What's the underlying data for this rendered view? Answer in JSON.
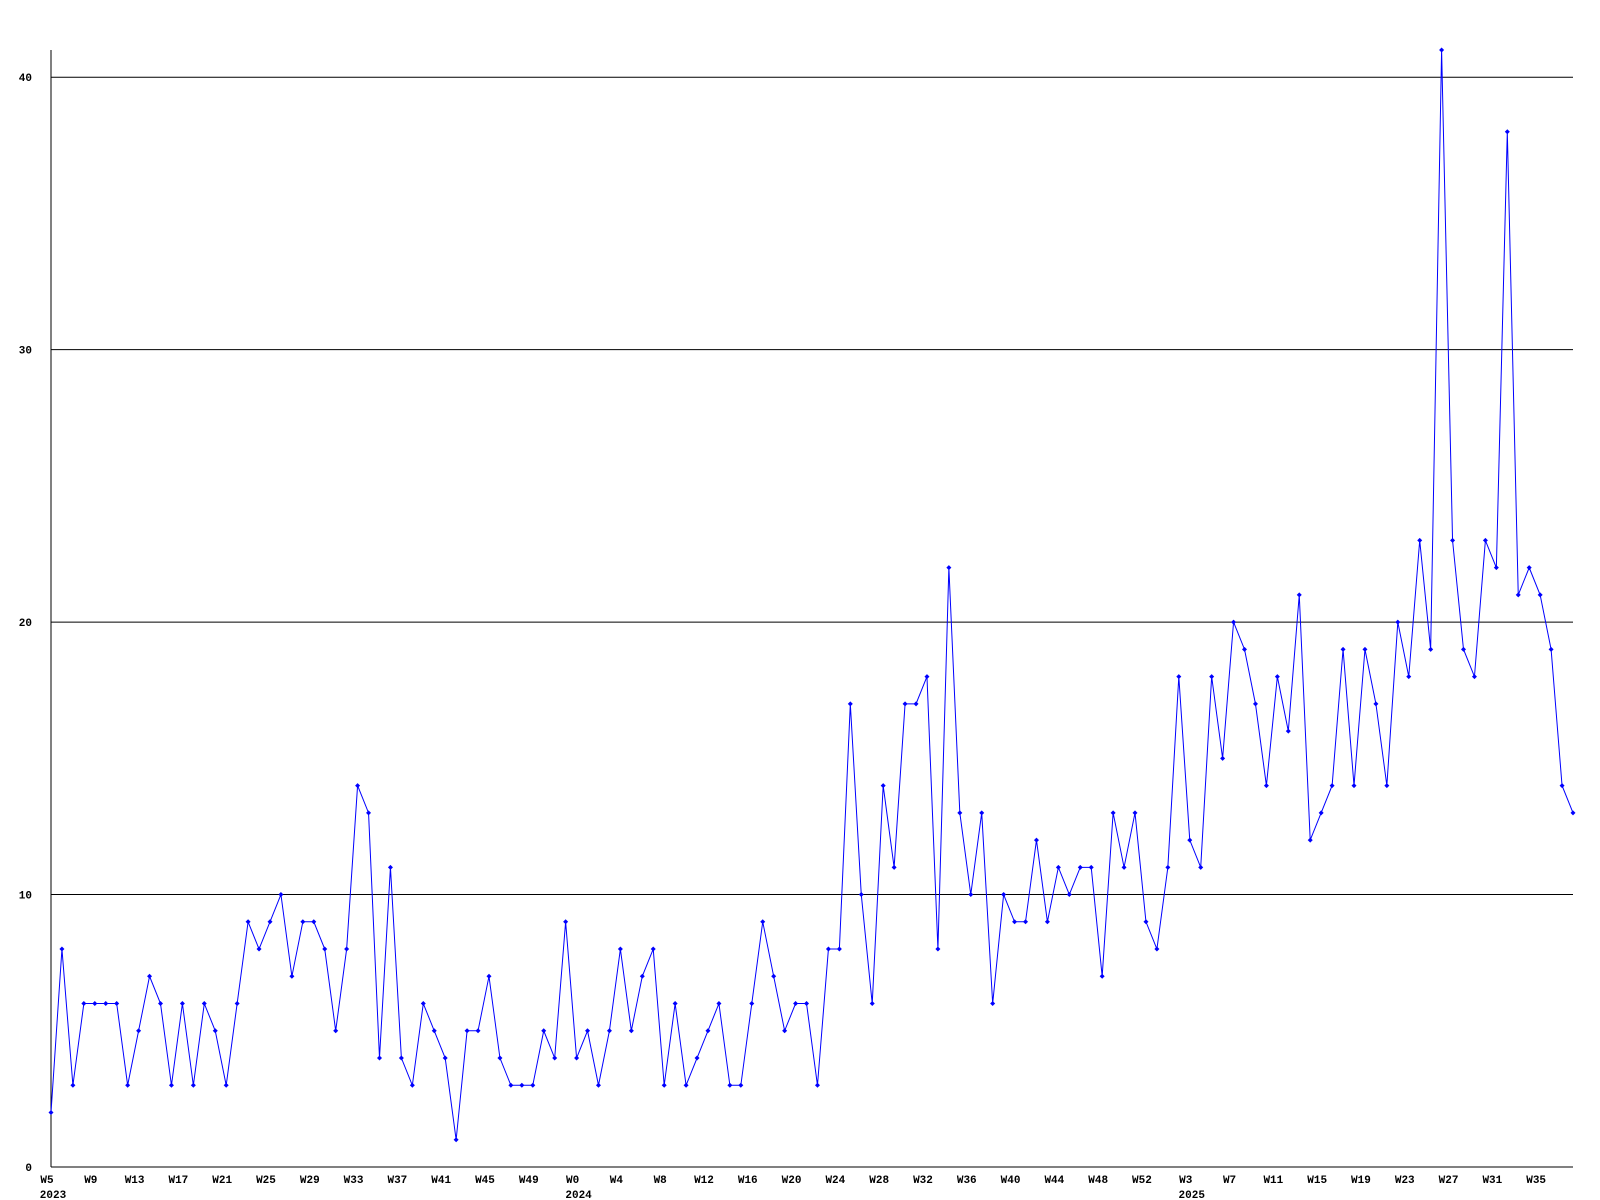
{
  "chart_data": {
    "type": "line",
    "categories": [
      "W5",
      null,
      null,
      null,
      "W9",
      null,
      null,
      null,
      "W13",
      null,
      null,
      null,
      "W17",
      null,
      null,
      null,
      "W21",
      null,
      null,
      null,
      "W25",
      null,
      null,
      null,
      "W29",
      null,
      null,
      null,
      "W33",
      null,
      null,
      null,
      "W37",
      null,
      null,
      null,
      "W41",
      null,
      null,
      null,
      "W45",
      null,
      null,
      null,
      "W49",
      null,
      null,
      null,
      "W0",
      null,
      null,
      null,
      "W4",
      null,
      null,
      null,
      "W8",
      null,
      null,
      null,
      "W12",
      null,
      null,
      null,
      "W16",
      null,
      null,
      null,
      "W20",
      null,
      null,
      null,
      "W24",
      null,
      null,
      null,
      "W28",
      null,
      null,
      null,
      "W32",
      null,
      null,
      null,
      "W36",
      null,
      null,
      null,
      "W40",
      null,
      null,
      null,
      "W44",
      null,
      null,
      null,
      "W48",
      null,
      null,
      null,
      "W52",
      null,
      null,
      null,
      "W3",
      null,
      null,
      null,
      "W7",
      null,
      null,
      null,
      "W11",
      null,
      null,
      null,
      "W15",
      null,
      null,
      null,
      "W19",
      null,
      null,
      null,
      "W23",
      null,
      null,
      null,
      "W27",
      null,
      null,
      null,
      "W31",
      null,
      null,
      null,
      "W35",
      null,
      null,
      null
    ],
    "category_years": [
      "2023",
      null,
      null,
      null,
      null,
      null,
      null,
      null,
      null,
      null,
      null,
      null,
      null,
      null,
      null,
      null,
      null,
      null,
      null,
      null,
      null,
      null,
      null,
      null,
      null,
      null,
      null,
      null,
      null,
      null,
      null,
      null,
      null,
      null,
      null,
      null,
      null,
      null,
      null,
      null,
      null,
      null,
      null,
      null,
      null,
      null,
      null,
      null,
      "2024",
      null,
      null,
      null,
      null,
      null,
      null,
      null,
      null,
      null,
      null,
      null,
      null,
      null,
      null,
      null,
      null,
      null,
      null,
      null,
      null,
      null,
      null,
      null,
      null,
      null,
      null,
      null,
      null,
      null,
      null,
      null,
      null,
      null,
      null,
      null,
      null,
      null,
      null,
      null,
      null,
      null,
      null,
      null,
      null,
      null,
      null,
      null,
      null,
      null,
      null,
      null,
      null,
      null,
      null,
      null,
      "2025",
      null,
      null,
      null,
      null,
      null,
      null,
      null,
      null,
      null,
      null,
      null,
      null,
      null,
      null,
      null,
      null,
      null,
      null,
      null,
      null,
      null,
      null,
      null,
      null,
      null,
      null,
      null,
      null,
      null,
      null,
      null,
      null,
      null,
      null,
      null
    ],
    "series": [
      {
        "color": "#0000ff",
        "values": [
          2,
          8,
          3,
          6,
          6,
          6,
          6,
          3,
          5,
          7,
          6,
          3,
          6,
          3,
          6,
          5,
          3,
          6,
          9,
          8,
          9,
          10,
          7,
          9,
          9,
          8,
          5,
          8,
          14,
          13,
          4,
          11,
          4,
          3,
          6,
          5,
          4,
          1,
          5,
          5,
          7,
          4,
          3,
          3,
          3,
          5,
          4,
          9,
          4,
          5,
          3,
          5,
          8,
          5,
          7,
          8,
          3,
          6,
          3,
          4,
          5,
          6,
          3,
          3,
          6,
          9,
          7,
          5,
          6,
          6,
          3,
          8,
          8,
          17,
          10,
          6,
          14,
          11,
          17,
          17,
          18,
          8,
          22,
          13,
          10,
          13,
          6,
          10,
          9,
          9,
          12,
          9,
          11,
          10,
          11,
          11,
          7,
          13,
          11,
          13,
          9,
          8,
          11,
          18,
          12,
          11,
          18,
          15,
          20,
          19,
          17,
          14,
          18,
          16,
          21,
          12,
          13,
          14,
          19,
          14,
          19,
          17,
          14,
          20,
          18,
          23,
          19,
          41,
          23,
          19,
          18,
          23,
          22,
          38,
          21,
          22,
          21,
          19,
          14,
          13
        ]
      }
    ],
    "ylim": [
      0,
      41
    ],
    "yticks": [
      0,
      10,
      20,
      30,
      40
    ],
    "grid": true
  }
}
